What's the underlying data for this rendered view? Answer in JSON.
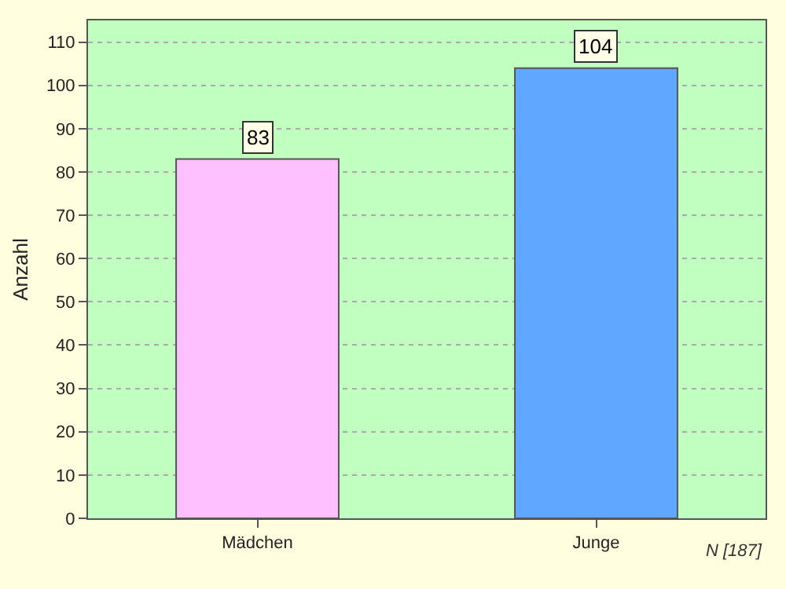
{
  "chart_data": {
    "type": "bar",
    "ylabel": "Anzahl",
    "categories": [
      "Mädchen",
      "Junge"
    ],
    "values": [
      83,
      104
    ],
    "colors": [
      "#ffc0ff",
      "#60a8ff"
    ],
    "ylim": [
      0,
      115
    ],
    "yticks": [
      0,
      10,
      20,
      30,
      40,
      50,
      60,
      70,
      80,
      90,
      100,
      110
    ],
    "grid": "y",
    "data_labels": true,
    "legend": false,
    "annotations": [
      "N [187]"
    ]
  }
}
